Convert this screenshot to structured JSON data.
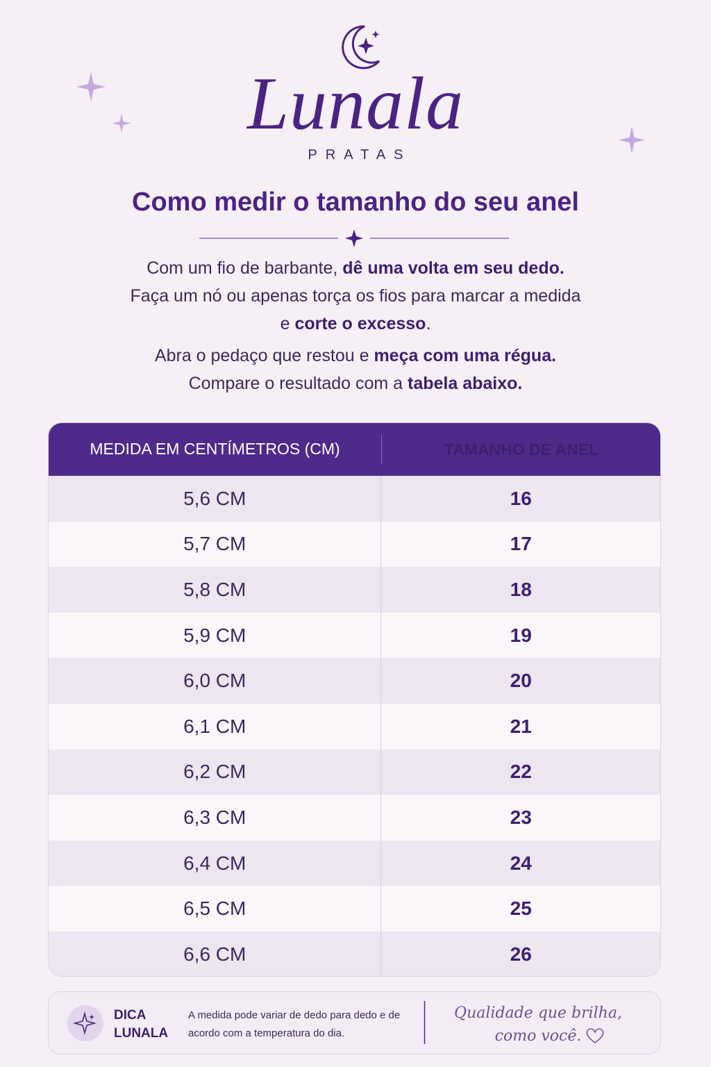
{
  "header": {
    "brand": "Lunala",
    "subtitle": "PRATAS"
  },
  "title": "Como medir o tamanho do seu anel",
  "instructions": [
    {
      "lines": [
        [
          {
            "text": "Com um fio de barbante, ",
            "bold": false
          },
          {
            "text": "dê uma volta em seu dedo.",
            "bold": true
          }
        ],
        [
          {
            "text": "Faça um nó ou apenas torça os fios para marcar a medida",
            "bold": false
          }
        ],
        [
          {
            "text": "e ",
            "bold": false
          },
          {
            "text": "corte o excesso",
            "bold": true
          },
          {
            "text": ".",
            "bold": false
          }
        ]
      ]
    },
    {
      "lines": [
        [
          {
            "text": "Abra o pedaço que restou e ",
            "bold": false
          },
          {
            "text": "meça com uma régua.",
            "bold": true
          }
        ],
        [
          {
            "text": "Compare o resultado com a ",
            "bold": false
          },
          {
            "text": "tabela abaixo.",
            "bold": true
          }
        ]
      ]
    }
  ],
  "table": {
    "columns": [
      "MEDIDA EM CENTÍMETROS (CM)",
      "TAMANHO DE ANEL"
    ],
    "rows": [
      [
        "5,6 CM",
        16
      ],
      [
        "5,7 CM",
        17
      ],
      [
        "5,8 CM",
        18
      ],
      [
        "5,9 CM",
        19
      ],
      [
        "6,0 CM",
        20
      ],
      [
        "6,1 CM",
        21
      ],
      [
        "6,2 CM",
        22
      ],
      [
        "6,3 CM",
        23
      ],
      [
        "6,4 CM",
        24
      ],
      [
        "6,5 CM",
        25
      ],
      [
        "6,6 CM",
        26
      ]
    ]
  },
  "tip": {
    "label": "DICA LUNALA",
    "text": "A medida pode variar de dedo para dedo e de acordo com a temperatura do dia.",
    "tagline": "Qualidade que brilha, como você."
  }
}
